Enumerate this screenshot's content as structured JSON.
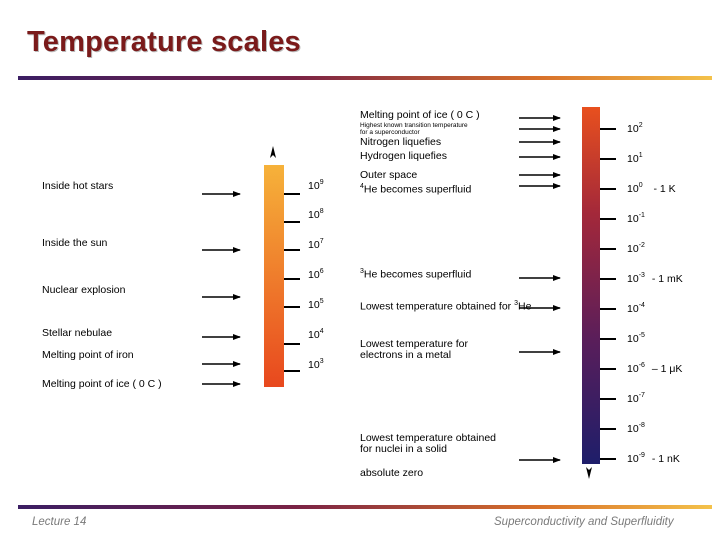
{
  "title": "Temperature scales",
  "footer": {
    "left": "Lecture 14",
    "right": "Superconductivity and Superfluidity"
  },
  "left_panel": {
    "labels": [
      "Inside hot stars",
      "Inside the sun",
      "Nuclear explosion",
      "Stellar nebulae",
      "Melting point of iron",
      "Melting point of ice ( 0  C )"
    ],
    "ticks": [
      {
        "base": "10",
        "exp": "9"
      },
      {
        "base": "10",
        "exp": "8"
      },
      {
        "base": "10",
        "exp": "7"
      },
      {
        "base": "10",
        "exp": "6"
      },
      {
        "base": "10",
        "exp": "5"
      },
      {
        "base": "10",
        "exp": "4"
      },
      {
        "base": "10",
        "exp": "3"
      }
    ]
  },
  "right_panel": {
    "labels": {
      "ice": "Melting point of ice ( 0  C )",
      "highest_transition_1": "Highest known transition temperature",
      "highest_transition_2": "for a superconductor",
      "nitrogen": "Nitrogen liquefies",
      "hydrogen": "Hydrogen liquefies",
      "outer_space": "Outer space",
      "he4": "He becomes superfluid",
      "he4_pre": "4",
      "he3": "He becomes superfluid",
      "he3_pre": "3",
      "lowest_he3": "Lowest temperature obtained for ",
      "lowest_he3_sup": "3",
      "lowest_he3_end": "He",
      "electrons_1": "Lowest temperature for",
      "electrons_2": "electrons in a metal",
      "nuclei_1": "Lowest temperature obtained",
      "nuclei_2": "for nuclei in a solid",
      "absolute_zero": "absolute zero"
    },
    "ticks": [
      {
        "base": "10",
        "exp": "2"
      },
      {
        "base": "10",
        "exp": "1"
      },
      {
        "base": "10",
        "exp": "0"
      },
      {
        "base": "10",
        "exp": "-1"
      },
      {
        "base": "10",
        "exp": "-2"
      },
      {
        "base": "10",
        "exp": "-3"
      },
      {
        "base": "10",
        "exp": "-4"
      },
      {
        "base": "10",
        "exp": "-5"
      },
      {
        "base": "10",
        "exp": "-6"
      },
      {
        "base": "10",
        "exp": "-7"
      },
      {
        "base": "10",
        "exp": "-8"
      },
      {
        "base": "10",
        "exp": "-9"
      }
    ],
    "units": {
      "one_k": "- 1 K",
      "one_mk": "- 1 mK",
      "one_uk": "– 1 μK",
      "one_nk": "- 1 nK"
    }
  },
  "colors": {
    "title": "#7a1a1a",
    "bar_left_top": "#f6b23a",
    "bar_left_bottom": "#e84a1e",
    "bar_right_top": "#e8501e",
    "bar_right_bottom": "#1e1e6a"
  }
}
